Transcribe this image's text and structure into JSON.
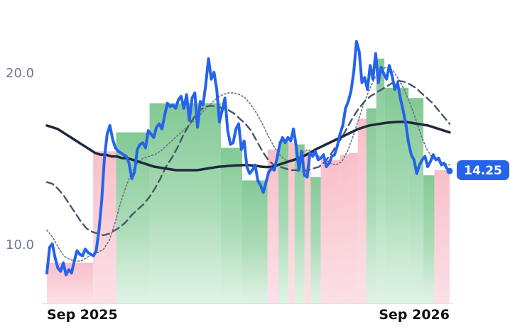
{
  "chart_data": {
    "type": "line",
    "title": "",
    "xlabel": "",
    "ylabel": "",
    "x_ticks": [
      "Sep 2025",
      "Sep 2026"
    ],
    "y_ticks": [
      "10.0",
      "20.0"
    ],
    "ylim": [
      6.5,
      22.5
    ],
    "last_value_label": "14.25",
    "colors": {
      "price": "#2563eb",
      "ma_long": "#1e293b",
      "ma_mid": "#475569",
      "ma_short": "#6b7280",
      "up_fill": "#7cc68f",
      "down_fill": "#f7a9b8",
      "badge": "#2563eb"
    },
    "series": [
      {
        "key": "price",
        "values": [
          8.3,
          9.8,
          10.0,
          9.2,
          8.6,
          8.4,
          8.9,
          8.2,
          8.5,
          8.3,
          9.0,
          9.6,
          9.4,
          9.3,
          9.7,
          9.5,
          9.4,
          9.3,
          9.6,
          10.8,
          12.5,
          15.0,
          16.4,
          16.9,
          16.1,
          15.6,
          15.4,
          15.3,
          15.2,
          15.1,
          14.7,
          13.8,
          14.2,
          15.5,
          15.8,
          15.9,
          15.6,
          16.6,
          16.4,
          16.2,
          16.8,
          17.0,
          16.7,
          17.5,
          18.2,
          18.0,
          18.1,
          17.9,
          18.4,
          18.6,
          17.9,
          18.7,
          17.2,
          18.5,
          18.8,
          16.8,
          18.3,
          18.1,
          19.3,
          20.8,
          19.6,
          20.0,
          19.0,
          17.1,
          17.8,
          18.5,
          16.6,
          15.8,
          15.9,
          16.7,
          17.0,
          15.5,
          16.0,
          14.5,
          14.1,
          14.3,
          14.6,
          13.7,
          13.4,
          13.0,
          13.6,
          14.2,
          14.4,
          14.3,
          15.0,
          15.8,
          16.2,
          15.9,
          16.2,
          16.0,
          16.7,
          15.7,
          14.3,
          15.4,
          14.0,
          13.9,
          15.3,
          15.1,
          15.4,
          14.9,
          15.0,
          15.2,
          14.5,
          14.7,
          15.1,
          15.2,
          15.7,
          16.4,
          16.9,
          17.9,
          18.3,
          18.9,
          20.0,
          21.8,
          21.2,
          19.4,
          19.7,
          19.0,
          20.4,
          19.6,
          21.1,
          19.4,
          20.3,
          19.9,
          19.6,
          20.4,
          19.8,
          19.0,
          19.4,
          18.5,
          17.8,
          17.0,
          15.9,
          15.2,
          14.9,
          14.1,
          14.6,
          14.9,
          15.1,
          14.5,
          14.8,
          15.2,
          14.9,
          15.0,
          14.6,
          14.7,
          14.4,
          14.25
        ]
      },
      {
        "key": "ma_long",
        "values": [
          16.9,
          16.8,
          16.7,
          16.5,
          16.3,
          16.1,
          15.9,
          15.7,
          15.5,
          15.3,
          15.2,
          15.2,
          15.1,
          15.1,
          15.0,
          15.0,
          14.9,
          14.8,
          14.7,
          14.6,
          14.5,
          14.45,
          14.4,
          14.35,
          14.3,
          14.3,
          14.3,
          14.3,
          14.3,
          14.35,
          14.4,
          14.45,
          14.5,
          14.52,
          14.55,
          14.57,
          14.58,
          14.6,
          14.58,
          14.55,
          14.5,
          14.48,
          14.5,
          14.6,
          14.7,
          14.8,
          14.9,
          15.0,
          15.15,
          15.3,
          15.5,
          15.65,
          15.8,
          15.95,
          16.1,
          16.25,
          16.4,
          16.55,
          16.7,
          16.8,
          16.9,
          16.95,
          17.0,
          17.05,
          17.08,
          17.1,
          17.12,
          17.1,
          17.05,
          17.0,
          16.95,
          16.9,
          16.8,
          16.7,
          16.6,
          16.5
        ]
      },
      {
        "key": "ma_mid",
        "values": [
          13.6,
          13.5,
          13.2,
          12.8,
          12.3,
          11.8,
          11.3,
          10.9,
          10.7,
          10.6,
          10.5,
          10.6,
          10.8,
          11.0,
          11.3,
          11.7,
          12.0,
          12.3,
          12.7,
          13.2,
          13.8,
          14.5,
          15.0,
          15.6,
          16.3,
          16.9,
          17.4,
          17.8,
          18.0,
          18.05,
          18.0,
          17.9,
          17.8,
          17.6,
          17.3,
          17.0,
          16.6,
          16.0,
          15.4,
          14.9,
          14.6,
          14.5,
          14.4,
          14.3,
          14.3,
          14.2,
          14.3,
          14.4,
          14.5,
          14.8,
          15.2,
          15.7,
          16.2,
          16.8,
          17.4,
          17.9,
          18.3,
          18.6,
          18.8,
          19.0,
          19.2,
          19.4,
          19.5,
          19.45,
          19.3,
          19.1,
          18.8,
          18.5,
          18.2,
          17.8,
          17.4,
          17.0
        ]
      },
      {
        "key": "ma_short",
        "values": [
          10.8,
          10.4,
          9.8,
          9.3,
          9.1,
          9.0,
          9.0,
          9.2,
          9.4,
          9.5,
          9.7,
          10.2,
          11.2,
          12.4,
          13.4,
          14.2,
          14.7,
          15.0,
          15.1,
          15.2,
          15.4,
          15.7,
          16.0,
          16.3,
          16.6,
          16.9,
          17.2,
          17.5,
          17.9,
          18.2,
          18.5,
          18.7,
          18.8,
          18.8,
          18.7,
          18.5,
          18.1,
          17.6,
          17.0,
          16.3,
          15.7,
          15.2,
          14.9,
          14.8,
          15.0,
          15.3,
          15.5,
          15.3,
          15.1,
          14.9,
          14.7,
          14.6,
          14.8,
          15.4,
          16.3,
          17.3,
          18.3,
          19.1,
          19.8,
          20.2,
          20.3,
          20.1,
          19.6,
          19.0,
          18.2,
          17.3,
          16.3,
          15.5,
          15.0,
          14.8,
          14.7,
          14.6
        ]
      }
    ],
    "regions": [
      {
        "trend": "down",
        "start": 0.0,
        "end": 0.115,
        "level": 8.9
      },
      {
        "trend": "down",
        "start": 0.115,
        "end": 0.172,
        "level": 15.4
      },
      {
        "trend": "up",
        "start": 0.172,
        "end": 0.255,
        "level": 16.5
      },
      {
        "trend": "up",
        "start": 0.255,
        "end": 0.432,
        "level": 18.2
      },
      {
        "trend": "up",
        "start": 0.432,
        "end": 0.485,
        "level": 15.6
      },
      {
        "trend": "up",
        "start": 0.485,
        "end": 0.548,
        "level": 13.7
      },
      {
        "trend": "down",
        "start": 0.548,
        "end": 0.575,
        "level": 15.5
      },
      {
        "trend": "up",
        "start": 0.575,
        "end": 0.6,
        "level": 16.0
      },
      {
        "trend": "down",
        "start": 0.6,
        "end": 0.615,
        "level": 15.9
      },
      {
        "trend": "up",
        "start": 0.615,
        "end": 0.64,
        "level": 15.8
      },
      {
        "trend": "down",
        "start": 0.64,
        "end": 0.655,
        "level": 15.4
      },
      {
        "trend": "up",
        "start": 0.655,
        "end": 0.68,
        "level": 13.9
      },
      {
        "trend": "down",
        "start": 0.68,
        "end": 0.728,
        "level": 14.9
      },
      {
        "trend": "down",
        "start": 0.728,
        "end": 0.75,
        "level": 15.2
      },
      {
        "trend": "down",
        "start": 0.75,
        "end": 0.772,
        "level": 15.3
      },
      {
        "trend": "down",
        "start": 0.772,
        "end": 0.793,
        "level": 17.3
      },
      {
        "trend": "up",
        "start": 0.793,
        "end": 0.818,
        "level": 17.9
      },
      {
        "trend": "up",
        "start": 0.818,
        "end": 0.838,
        "level": 20.8
      },
      {
        "trend": "up",
        "start": 0.838,
        "end": 0.898,
        "level": 19.1
      },
      {
        "trend": "up",
        "start": 0.898,
        "end": 0.935,
        "level": 18.5
      },
      {
        "trend": "up",
        "start": 0.935,
        "end": 0.962,
        "level": 14.0
      },
      {
        "trend": "down",
        "start": 0.962,
        "end": 1.0,
        "level": 14.3
      }
    ]
  }
}
